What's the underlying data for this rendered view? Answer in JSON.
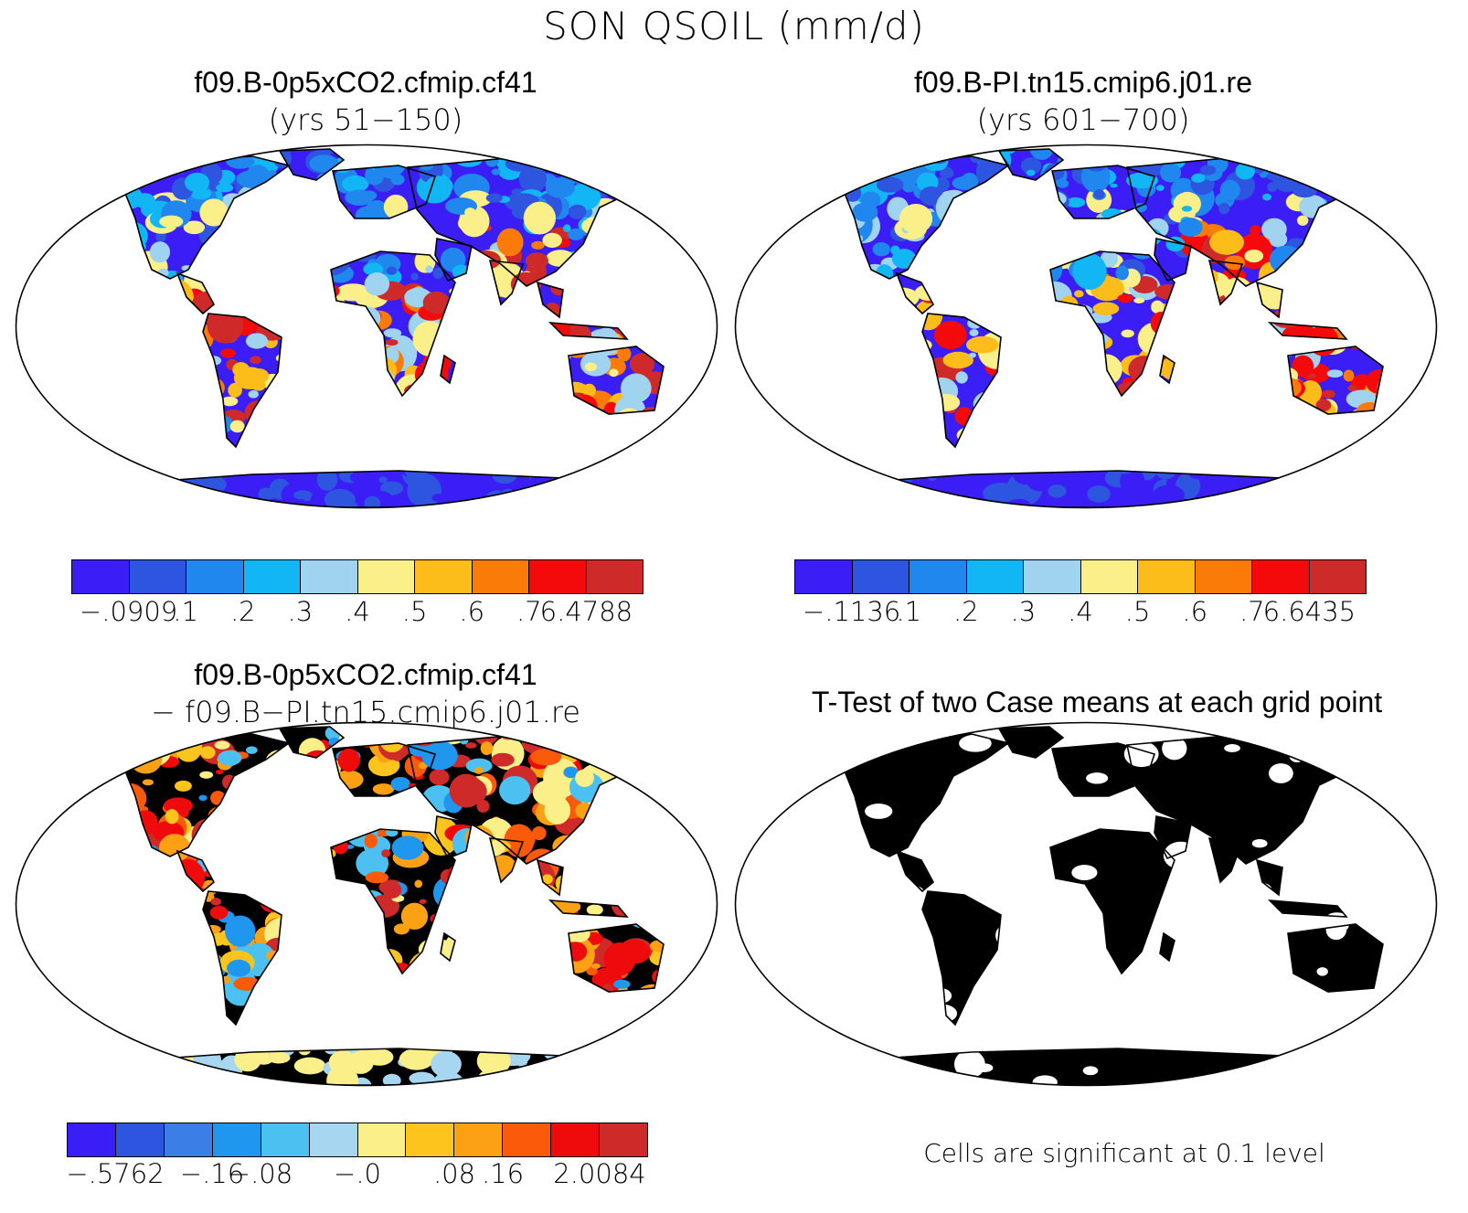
{
  "figure": {
    "title": "SON QSOIL (mm/d)",
    "footnote": "Cells are significant at 0.1 level"
  },
  "panels": [
    {
      "title": "f09.B-0p5xCO2.cfmip.cf41",
      "subtitle": "(yrs 51−150)",
      "colorbar": {
        "colors": [
          "#3b1ef5",
          "#2e55e0",
          "#1f87ee",
          "#12b6f5",
          "#9fd3f0",
          "#fbef8a",
          "#fcbc1a",
          "#fb7b08",
          "#f40a0a",
          "#cf2a2a"
        ],
        "labels": [
          "−.0909",
          ".1",
          ".2",
          ".3",
          ".4",
          ".5",
          ".6",
          ".7",
          "6.4788"
        ]
      }
    },
    {
      "title": "f09.B-PI.tn15.cmip6.j01.re",
      "subtitle": "(yrs 601−700)",
      "colorbar": {
        "colors": [
          "#3b1ef5",
          "#2e55e0",
          "#1f87ee",
          "#12b6f5",
          "#9fd3f0",
          "#fbef8a",
          "#fcbc1a",
          "#fb7b08",
          "#f40a0a",
          "#cf2a2a"
        ],
        "labels": [
          "−.1136",
          ".1",
          ".2",
          ".3",
          ".4",
          ".5",
          ".6",
          ".7",
          "6.6435"
        ]
      }
    },
    {
      "title": "f09.B-0p5xCO2.cfmip.cf41",
      "subtitle": "− f09.B−PI.tn15.cmip6.j01.re",
      "colorbar": {
        "colors": [
          "#3b1ef5",
          "#2e55e0",
          "#3b7ee5",
          "#1f97ee",
          "#4cc0f0",
          "#a6d6f0",
          "#fbef8a",
          "#fcc41c",
          "#fca114",
          "#fb5a0a",
          "#ef0b0b",
          "#cf2a2a"
        ],
        "labels": [
          "−.5762",
          "−.16",
          "−.08",
          "−.0",
          ".08",
          ".16",
          "2.0084"
        ]
      }
    },
    {
      "title": "T-Test of two Case means at each grid point",
      "significance_color": "#ff0000"
    }
  ]
}
